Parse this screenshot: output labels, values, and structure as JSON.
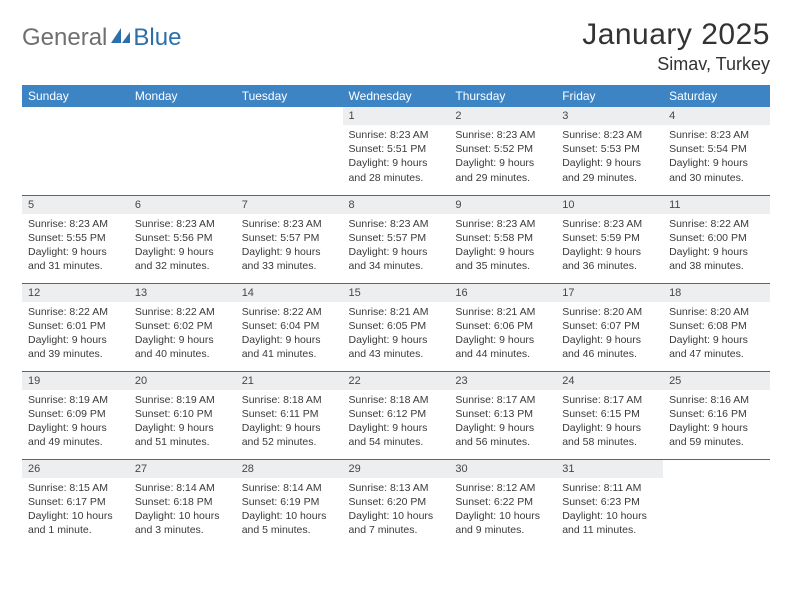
{
  "brand": {
    "general": "General",
    "blue": "Blue"
  },
  "title": "January 2025",
  "location": "Simav, Turkey",
  "colors": {
    "header_bg": "#3d84c5",
    "header_text": "#ffffff",
    "daynum_bg": "#eceef0",
    "row_border": "#3d6c98",
    "body_text": "#3a3a3a",
    "logo_general": "#6f6f6f",
    "logo_blue": "#2b6fab"
  },
  "weekdays": [
    "Sunday",
    "Monday",
    "Tuesday",
    "Wednesday",
    "Thursday",
    "Friday",
    "Saturday"
  ],
  "weeks": [
    [
      null,
      null,
      null,
      {
        "n": "1",
        "sunrise": "8:23 AM",
        "sunset": "5:51 PM",
        "daylight": "9 hours and 28 minutes."
      },
      {
        "n": "2",
        "sunrise": "8:23 AM",
        "sunset": "5:52 PM",
        "daylight": "9 hours and 29 minutes."
      },
      {
        "n": "3",
        "sunrise": "8:23 AM",
        "sunset": "5:53 PM",
        "daylight": "9 hours and 29 minutes."
      },
      {
        "n": "4",
        "sunrise": "8:23 AM",
        "sunset": "5:54 PM",
        "daylight": "9 hours and 30 minutes."
      }
    ],
    [
      {
        "n": "5",
        "sunrise": "8:23 AM",
        "sunset": "5:55 PM",
        "daylight": "9 hours and 31 minutes."
      },
      {
        "n": "6",
        "sunrise": "8:23 AM",
        "sunset": "5:56 PM",
        "daylight": "9 hours and 32 minutes."
      },
      {
        "n": "7",
        "sunrise": "8:23 AM",
        "sunset": "5:57 PM",
        "daylight": "9 hours and 33 minutes."
      },
      {
        "n": "8",
        "sunrise": "8:23 AM",
        "sunset": "5:57 PM",
        "daylight": "9 hours and 34 minutes."
      },
      {
        "n": "9",
        "sunrise": "8:23 AM",
        "sunset": "5:58 PM",
        "daylight": "9 hours and 35 minutes."
      },
      {
        "n": "10",
        "sunrise": "8:23 AM",
        "sunset": "5:59 PM",
        "daylight": "9 hours and 36 minutes."
      },
      {
        "n": "11",
        "sunrise": "8:22 AM",
        "sunset": "6:00 PM",
        "daylight": "9 hours and 38 minutes."
      }
    ],
    [
      {
        "n": "12",
        "sunrise": "8:22 AM",
        "sunset": "6:01 PM",
        "daylight": "9 hours and 39 minutes."
      },
      {
        "n": "13",
        "sunrise": "8:22 AM",
        "sunset": "6:02 PM",
        "daylight": "9 hours and 40 minutes."
      },
      {
        "n": "14",
        "sunrise": "8:22 AM",
        "sunset": "6:04 PM",
        "daylight": "9 hours and 41 minutes."
      },
      {
        "n": "15",
        "sunrise": "8:21 AM",
        "sunset": "6:05 PM",
        "daylight": "9 hours and 43 minutes."
      },
      {
        "n": "16",
        "sunrise": "8:21 AM",
        "sunset": "6:06 PM",
        "daylight": "9 hours and 44 minutes."
      },
      {
        "n": "17",
        "sunrise": "8:20 AM",
        "sunset": "6:07 PM",
        "daylight": "9 hours and 46 minutes."
      },
      {
        "n": "18",
        "sunrise": "8:20 AM",
        "sunset": "6:08 PM",
        "daylight": "9 hours and 47 minutes."
      }
    ],
    [
      {
        "n": "19",
        "sunrise": "8:19 AM",
        "sunset": "6:09 PM",
        "daylight": "9 hours and 49 minutes."
      },
      {
        "n": "20",
        "sunrise": "8:19 AM",
        "sunset": "6:10 PM",
        "daylight": "9 hours and 51 minutes."
      },
      {
        "n": "21",
        "sunrise": "8:18 AM",
        "sunset": "6:11 PM",
        "daylight": "9 hours and 52 minutes."
      },
      {
        "n": "22",
        "sunrise": "8:18 AM",
        "sunset": "6:12 PM",
        "daylight": "9 hours and 54 minutes."
      },
      {
        "n": "23",
        "sunrise": "8:17 AM",
        "sunset": "6:13 PM",
        "daylight": "9 hours and 56 minutes."
      },
      {
        "n": "24",
        "sunrise": "8:17 AM",
        "sunset": "6:15 PM",
        "daylight": "9 hours and 58 minutes."
      },
      {
        "n": "25",
        "sunrise": "8:16 AM",
        "sunset": "6:16 PM",
        "daylight": "9 hours and 59 minutes."
      }
    ],
    [
      {
        "n": "26",
        "sunrise": "8:15 AM",
        "sunset": "6:17 PM",
        "daylight": "10 hours and 1 minute."
      },
      {
        "n": "27",
        "sunrise": "8:14 AM",
        "sunset": "6:18 PM",
        "daylight": "10 hours and 3 minutes."
      },
      {
        "n": "28",
        "sunrise": "8:14 AM",
        "sunset": "6:19 PM",
        "daylight": "10 hours and 5 minutes."
      },
      {
        "n": "29",
        "sunrise": "8:13 AM",
        "sunset": "6:20 PM",
        "daylight": "10 hours and 7 minutes."
      },
      {
        "n": "30",
        "sunrise": "8:12 AM",
        "sunset": "6:22 PM",
        "daylight": "10 hours and 9 minutes."
      },
      {
        "n": "31",
        "sunrise": "8:11 AM",
        "sunset": "6:23 PM",
        "daylight": "10 hours and 11 minutes."
      },
      null
    ]
  ],
  "labels": {
    "sunrise": "Sunrise:",
    "sunset": "Sunset:",
    "daylight": "Daylight:"
  }
}
